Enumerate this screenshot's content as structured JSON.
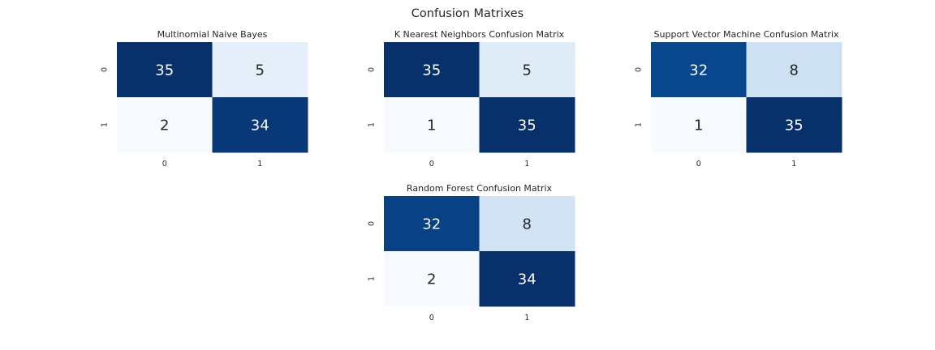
{
  "figure": {
    "title": "Confusion Matrixes"
  },
  "colormap": {
    "name": "Blues",
    "stops": [
      "#f7fbff",
      "#deebf7",
      "#c6dbef",
      "#9ecae1",
      "#6baed6",
      "#4292c6",
      "#2171b5",
      "#08519c",
      "#08306b"
    ],
    "text_dark": "#262626",
    "text_light": "#ffffff"
  },
  "chart_data": [
    {
      "type": "heatmap",
      "title": "Multinomial Naive Bayes",
      "x_ticks": [
        "0",
        "1"
      ],
      "y_ticks": [
        "0",
        "1"
      ],
      "values": [
        [
          35,
          5
        ],
        [
          2,
          34
        ]
      ]
    },
    {
      "type": "heatmap",
      "title": "K Nearest Neighbors Confusion Matrix",
      "x_ticks": [
        "0",
        "1"
      ],
      "y_ticks": [
        "0",
        "1"
      ],
      "values": [
        [
          35,
          5
        ],
        [
          1,
          35
        ]
      ]
    },
    {
      "type": "heatmap",
      "title": "Support Vector Machine Confusion Matrix",
      "x_ticks": [
        "0",
        "1"
      ],
      "y_ticks": [
        "0",
        "1"
      ],
      "values": [
        [
          32,
          8
        ],
        [
          1,
          35
        ]
      ]
    },
    {
      "type": "heatmap",
      "title": "Random Forest Confusion Matrix",
      "x_ticks": [
        "0",
        "1"
      ],
      "y_ticks": [
        "0",
        "1"
      ],
      "values": [
        [
          32,
          8
        ],
        [
          2,
          34
        ]
      ]
    }
  ]
}
